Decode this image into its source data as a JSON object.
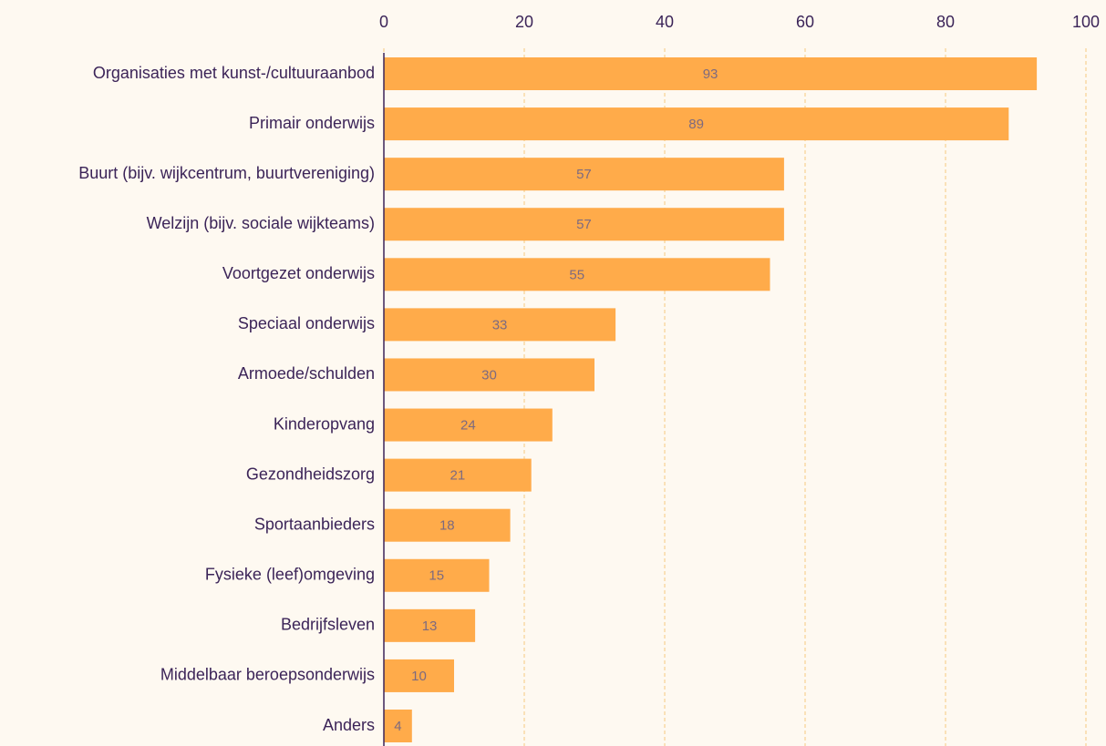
{
  "chart_data": {
    "type": "bar",
    "orientation": "horizontal",
    "categories": [
      "Organisaties met kunst-/cultuuraanbod",
      "Primair onderwijs",
      "Buurt (bijv. wijkcentrum, buurtvereniging)",
      "Welzijn (bijv. sociale wijkteams)",
      "Voortgezet onderwijs",
      "Speciaal onderwijs",
      "Armoede/schulden",
      "Kinderopvang",
      "Gezondheidszorg",
      "Sportaanbieders",
      "Fysieke (leef)omgeving",
      "Bedrijfsleven",
      "Middelbaar beroepsonderwijs",
      "Anders"
    ],
    "values": [
      93,
      89,
      57,
      57,
      55,
      33,
      30,
      24,
      21,
      18,
      15,
      13,
      10,
      4
    ],
    "color": "#ffab4a",
    "xlim": [
      0,
      100
    ],
    "xticks": [
      0,
      20,
      40,
      60,
      80,
      100
    ],
    "grid": true
  }
}
